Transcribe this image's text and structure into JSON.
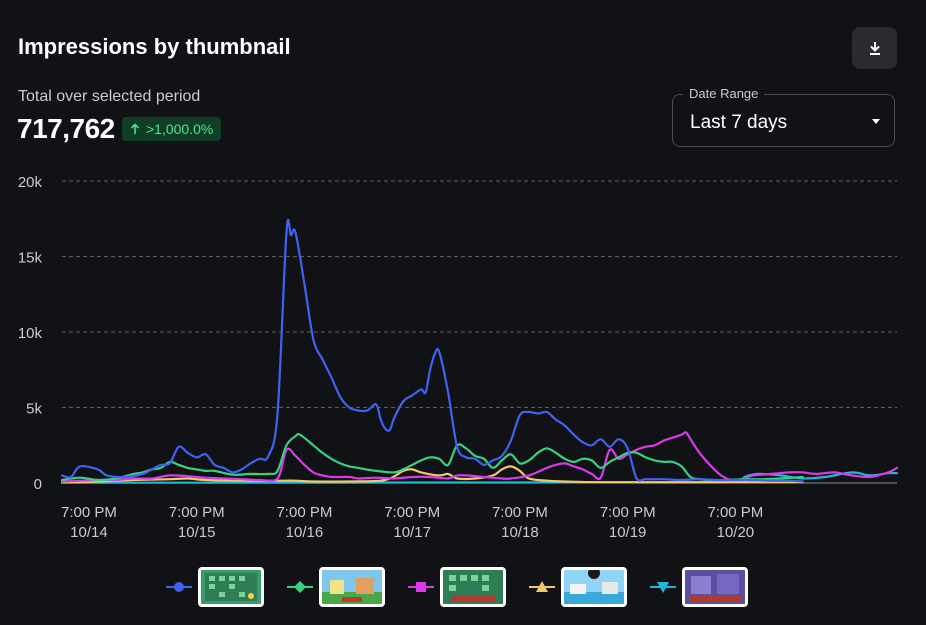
{
  "header": {
    "title": "Impressions by thumbnail",
    "download_icon": "download-icon"
  },
  "summary": {
    "label": "Total over selected period",
    "total": "717,762",
    "change": ">1,000.0%",
    "change_icon": "arrow-up-icon",
    "change_color": "#4ee38f"
  },
  "date_range": {
    "label": "Date Range",
    "value": "Last 7 days",
    "caret_icon": "caret-down-icon"
  },
  "chart_data": {
    "type": "line",
    "ylim": [
      0,
      20000
    ],
    "y_ticks": [
      0,
      5000,
      10000,
      15000,
      20000
    ],
    "y_tick_labels": [
      "0",
      "5k",
      "10k",
      "15k",
      "20k"
    ],
    "x_tick_labels": [
      [
        "7:00 PM",
        "10/14"
      ],
      [
        "7:00 PM",
        "10/15"
      ],
      [
        "7:00 PM",
        "10/16"
      ],
      [
        "7:00 PM",
        "10/17"
      ],
      [
        "7:00 PM",
        "10/18"
      ],
      [
        "7:00 PM",
        "10/19"
      ],
      [
        "7:00 PM",
        "10/20"
      ]
    ],
    "x_range_hours": [
      0,
      165
    ],
    "x_tick_hours": [
      6,
      30,
      54,
      78,
      102,
      126,
      150
    ],
    "grid": "horizontal-dashed",
    "legend_position": "bottom",
    "series": [
      {
        "color": "#3e63f2",
        "marker": "circle",
        "thumbnail": "thumbnail-1",
        "points": [
          [
            0,
            500
          ],
          [
            2,
            400
          ],
          [
            4,
            1100
          ],
          [
            8,
            900
          ],
          [
            10,
            500
          ],
          [
            14,
            400
          ],
          [
            18,
            600
          ],
          [
            20,
            900
          ],
          [
            22,
            1200
          ],
          [
            24,
            1300
          ],
          [
            26,
            2400
          ],
          [
            28,
            2000
          ],
          [
            30,
            1700
          ],
          [
            32,
            1900
          ],
          [
            34,
            1200
          ],
          [
            36,
            1000
          ],
          [
            38,
            700
          ],
          [
            40,
            900
          ],
          [
            42,
            1300
          ],
          [
            44,
            1600
          ],
          [
            46,
            1800
          ],
          [
            48,
            4600
          ],
          [
            50,
            16600
          ],
          [
            51,
            16400
          ],
          [
            52,
            16600
          ],
          [
            54,
            13200
          ],
          [
            56,
            9500
          ],
          [
            58,
            8200
          ],
          [
            60,
            7000
          ],
          [
            62,
            5700
          ],
          [
            64,
            5000
          ],
          [
            66,
            4800
          ],
          [
            68,
            4800
          ],
          [
            70,
            5200
          ],
          [
            71,
            4200
          ],
          [
            72,
            3600
          ],
          [
            73,
            3500
          ],
          [
            74,
            4300
          ],
          [
            76,
            5400
          ],
          [
            78,
            5800
          ],
          [
            80,
            6200
          ],
          [
            81,
            6000
          ],
          [
            82,
            7500
          ],
          [
            83,
            8500
          ],
          [
            84,
            8700
          ],
          [
            86,
            6000
          ],
          [
            88,
            2400
          ],
          [
            90,
            1700
          ],
          [
            92,
            1600
          ],
          [
            94,
            1200
          ],
          [
            96,
            1500
          ],
          [
            98,
            1800
          ],
          [
            100,
            2800
          ],
          [
            102,
            4500
          ],
          [
            104,
            4700
          ],
          [
            106,
            4600
          ],
          [
            108,
            4700
          ],
          [
            110,
            4200
          ],
          [
            112,
            3800
          ],
          [
            114,
            3200
          ],
          [
            116,
            2700
          ],
          [
            118,
            2500
          ],
          [
            120,
            2900
          ],
          [
            122,
            2400
          ],
          [
            124,
            2900
          ],
          [
            126,
            2300
          ],
          [
            128,
            300
          ],
          [
            130,
            250
          ],
          [
            134,
            250
          ],
          [
            138,
            200
          ],
          [
            142,
            250
          ],
          [
            146,
            200
          ],
          [
            150,
            200
          ],
          [
            154,
            200
          ],
          [
            158,
            150
          ],
          [
            162,
            150
          ],
          [
            165,
            100
          ]
        ]
      },
      {
        "color": "#37d27d",
        "marker": "diamond",
        "thumbnail": "thumbnail-2",
        "points": [
          [
            0,
            200
          ],
          [
            4,
            350
          ],
          [
            8,
            200
          ],
          [
            12,
            300
          ],
          [
            16,
            600
          ],
          [
            18,
            700
          ],
          [
            20,
            900
          ],
          [
            22,
            1000
          ],
          [
            24,
            1400
          ],
          [
            26,
            1200
          ],
          [
            28,
            1000
          ],
          [
            30,
            900
          ],
          [
            32,
            800
          ],
          [
            34,
            800
          ],
          [
            38,
            550
          ],
          [
            42,
            600
          ],
          [
            46,
            600
          ],
          [
            48,
            800
          ],
          [
            50,
            2500
          ],
          [
            52,
            3100
          ],
          [
            53,
            3200
          ],
          [
            56,
            2500
          ],
          [
            58,
            2000
          ],
          [
            60,
            1600
          ],
          [
            62,
            1300
          ],
          [
            64,
            1100
          ],
          [
            66,
            1000
          ],
          [
            70,
            800
          ],
          [
            74,
            700
          ],
          [
            76,
            900
          ],
          [
            78,
            1200
          ],
          [
            80,
            1500
          ],
          [
            82,
            1700
          ],
          [
            84,
            1600
          ],
          [
            86,
            1200
          ],
          [
            88,
            2500
          ],
          [
            90,
            2300
          ],
          [
            92,
            1800
          ],
          [
            94,
            1600
          ],
          [
            96,
            1000
          ],
          [
            98,
            1500
          ],
          [
            100,
            1900
          ],
          [
            102,
            1300
          ],
          [
            104,
            1500
          ],
          [
            106,
            2000
          ],
          [
            108,
            2300
          ],
          [
            110,
            2000
          ],
          [
            112,
            1600
          ],
          [
            114,
            1400
          ],
          [
            116,
            1600
          ],
          [
            118,
            1500
          ],
          [
            120,
            1000
          ],
          [
            122,
            1400
          ],
          [
            124,
            1700
          ],
          [
            126,
            2000
          ],
          [
            128,
            2000
          ],
          [
            130,
            1700
          ],
          [
            132,
            1500
          ],
          [
            134,
            1400
          ],
          [
            136,
            1400
          ],
          [
            138,
            1100
          ],
          [
            140,
            400
          ],
          [
            142,
            250
          ],
          [
            144,
            200
          ],
          [
            148,
            200
          ],
          [
            152,
            250
          ],
          [
            156,
            250
          ],
          [
            160,
            300
          ],
          [
            165,
            400
          ]
        ]
      },
      {
        "color": "#d93be8",
        "marker": "square",
        "thumbnail": "thumbnail-3",
        "points": [
          [
            0,
            100
          ],
          [
            4,
            150
          ],
          [
            8,
            200
          ],
          [
            12,
            200
          ],
          [
            16,
            300
          ],
          [
            20,
            300
          ],
          [
            24,
            500
          ],
          [
            28,
            450
          ],
          [
            32,
            350
          ],
          [
            36,
            300
          ],
          [
            40,
            250
          ],
          [
            44,
            200
          ],
          [
            48,
            300
          ],
          [
            50,
            2200
          ],
          [
            52,
            1800
          ],
          [
            54,
            1200
          ],
          [
            56,
            700
          ],
          [
            58,
            500
          ],
          [
            60,
            400
          ],
          [
            64,
            400
          ],
          [
            66,
            300
          ],
          [
            70,
            350
          ],
          [
            74,
            300
          ],
          [
            78,
            400
          ],
          [
            82,
            400
          ],
          [
            86,
            300
          ],
          [
            88,
            500
          ],
          [
            90,
            500
          ],
          [
            94,
            400
          ],
          [
            98,
            300
          ],
          [
            100,
            300
          ],
          [
            104,
            500
          ],
          [
            108,
            1000
          ],
          [
            110,
            1200
          ],
          [
            112,
            1300
          ],
          [
            114,
            1100
          ],
          [
            116,
            900
          ],
          [
            118,
            600
          ],
          [
            120,
            350
          ],
          [
            122,
            2200
          ],
          [
            124,
            1600
          ],
          [
            126,
            1900
          ],
          [
            128,
            2200
          ],
          [
            130,
            2400
          ],
          [
            132,
            2500
          ],
          [
            134,
            2800
          ],
          [
            136,
            3000
          ],
          [
            138,
            3200
          ],
          [
            139,
            3350
          ],
          [
            140,
            2900
          ],
          [
            142,
            2000
          ],
          [
            144,
            1300
          ],
          [
            146,
            700
          ],
          [
            148,
            300
          ],
          [
            150,
            200
          ],
          [
            152,
            300
          ],
          [
            154,
            500
          ],
          [
            158,
            600
          ],
          [
            162,
            700
          ],
          [
            165,
            700
          ],
          [
            168,
            600
          ],
          [
            172,
            700
          ],
          [
            176,
            500
          ],
          [
            180,
            400
          ],
          [
            184,
            700
          ],
          [
            186,
            1000
          ]
        ]
      },
      {
        "color": "#f0c96a",
        "marker": "triangle",
        "thumbnail": "thumbnail-4",
        "points": [
          [
            0,
            50
          ],
          [
            8,
            100
          ],
          [
            16,
            200
          ],
          [
            24,
            250
          ],
          [
            28,
            300
          ],
          [
            32,
            200
          ],
          [
            40,
            150
          ],
          [
            48,
            150
          ],
          [
            52,
            150
          ],
          [
            56,
            100
          ],
          [
            64,
            100
          ],
          [
            72,
            200
          ],
          [
            76,
            800
          ],
          [
            78,
            900
          ],
          [
            80,
            700
          ],
          [
            84,
            500
          ],
          [
            86,
            600
          ],
          [
            88,
            300
          ],
          [
            92,
            300
          ],
          [
            96,
            500
          ],
          [
            98,
            900
          ],
          [
            100,
            1100
          ],
          [
            102,
            800
          ],
          [
            104,
            300
          ],
          [
            108,
            150
          ],
          [
            112,
            100
          ],
          [
            120,
            50
          ],
          [
            140,
            50
          ],
          [
            165,
            50
          ]
        ]
      },
      {
        "color": "#1fb8d6",
        "marker": "triangle-down",
        "thumbnail": "thumbnail-5",
        "points": [
          [
            0,
            20
          ],
          [
            40,
            20
          ],
          [
            80,
            30
          ],
          [
            120,
            40
          ],
          [
            150,
            60
          ],
          [
            152,
            400
          ],
          [
            155,
            600
          ],
          [
            160,
            500
          ],
          [
            165,
            300
          ],
          [
            170,
            400
          ],
          [
            176,
            700
          ],
          [
            180,
            500
          ],
          [
            184,
            650
          ],
          [
            186,
            650
          ]
        ]
      }
    ]
  },
  "legend": [
    {
      "color": "#3e63f2",
      "marker": "circle",
      "thumbnail": "thumbnail-1"
    },
    {
      "color": "#37d27d",
      "marker": "diamond",
      "thumbnail": "thumbnail-2"
    },
    {
      "color": "#d93be8",
      "marker": "square",
      "thumbnail": "thumbnail-3"
    },
    {
      "color": "#f0c96a",
      "marker": "triangle",
      "thumbnail": "thumbnail-4"
    },
    {
      "color": "#1fb8d6",
      "marker": "triangle-down",
      "thumbnail": "thumbnail-5"
    }
  ]
}
